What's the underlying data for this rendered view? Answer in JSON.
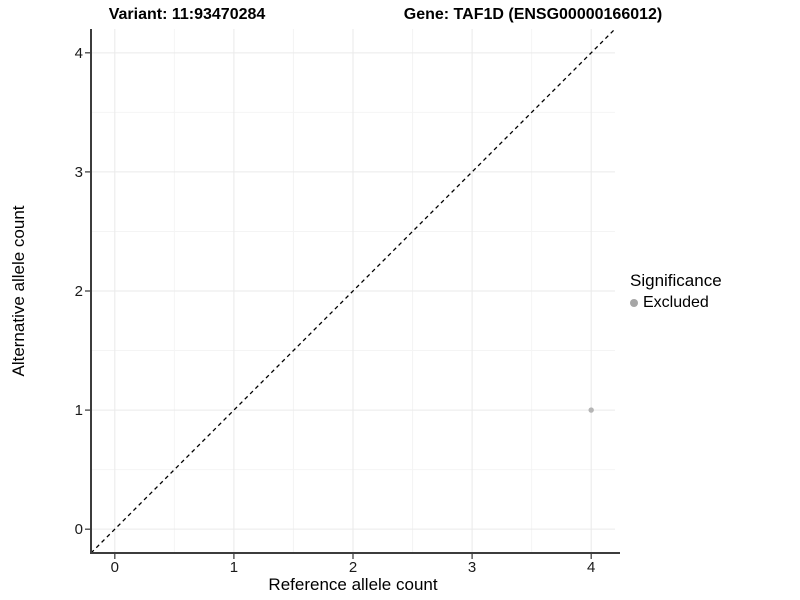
{
  "chart_data": {
    "type": "scatter",
    "title_left": "Variant: 11:93470284",
    "title_right": "Gene: TAF1D (ENSG00000166012)",
    "xlabel": "Reference allele count",
    "ylabel": "Alternative allele count",
    "xlim": [
      -0.2,
      4.2
    ],
    "ylim": [
      -0.2,
      4.2
    ],
    "xticks": [
      0,
      1,
      2,
      3,
      4
    ],
    "yticks": [
      0,
      1,
      2,
      3,
      4
    ],
    "minor_grid_step": 0.5,
    "grid": true,
    "reference_line": {
      "type": "identity_y_equals_x",
      "style": "dashed",
      "color": "#000000",
      "x1": -0.2,
      "y1": -0.2,
      "x2": 4.2,
      "y2": 4.2
    },
    "series": [
      {
        "name": "Excluded",
        "color": "#B5B5B5",
        "points": [
          {
            "x": 4,
            "y": 1
          }
        ]
      }
    ],
    "legend": {
      "title": "Significance",
      "position": "right",
      "items": [
        {
          "label": "Excluded",
          "color": "#A6A6A6"
        }
      ]
    },
    "colors": {
      "panel_background": "#FFFFFF",
      "grid_major": "#EAEAEA",
      "grid_minor": "#F4F4F4",
      "axis_line": "#3C3C3C",
      "tick_mark": "#333333",
      "tick_label": "#1A1A1A"
    }
  }
}
